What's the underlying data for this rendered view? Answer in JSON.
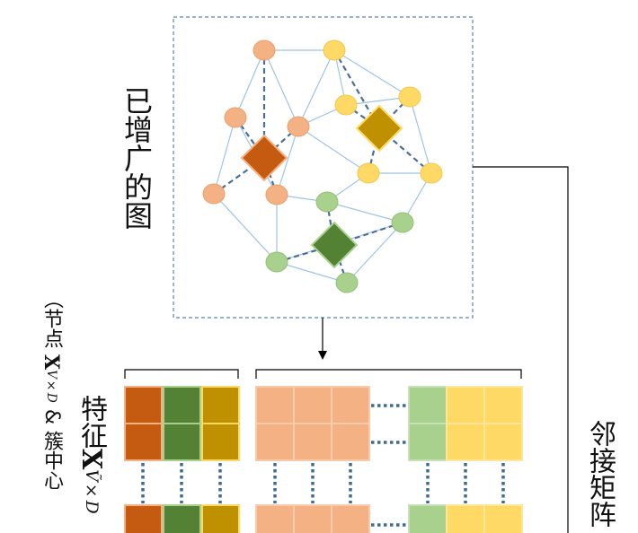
{
  "graph_label": "已增广的图",
  "adjacency_label": "邻接矩阵",
  "features_label": {
    "prefix": "特征",
    "symbol": "X",
    "subscript": "Ṽ×D"
  },
  "nodes_label": {
    "prefix": "（节点",
    "symbol": "X",
    "subscript": "V×D",
    "suffix": "& 簇中心"
  },
  "colors": {
    "orange_node": "#f4b183",
    "orange_stroke": "#e9a26f",
    "yellow_node": "#ffd966",
    "green_node": "#a9d18e",
    "orange_center": "#c55a11",
    "yellow_center": "#bf9000",
    "green_center": "#548235",
    "edge": "#9dc3e6",
    "cluster_edge": "#4a6f97",
    "frame": "#5b84b1",
    "connector": "#000000"
  }
}
